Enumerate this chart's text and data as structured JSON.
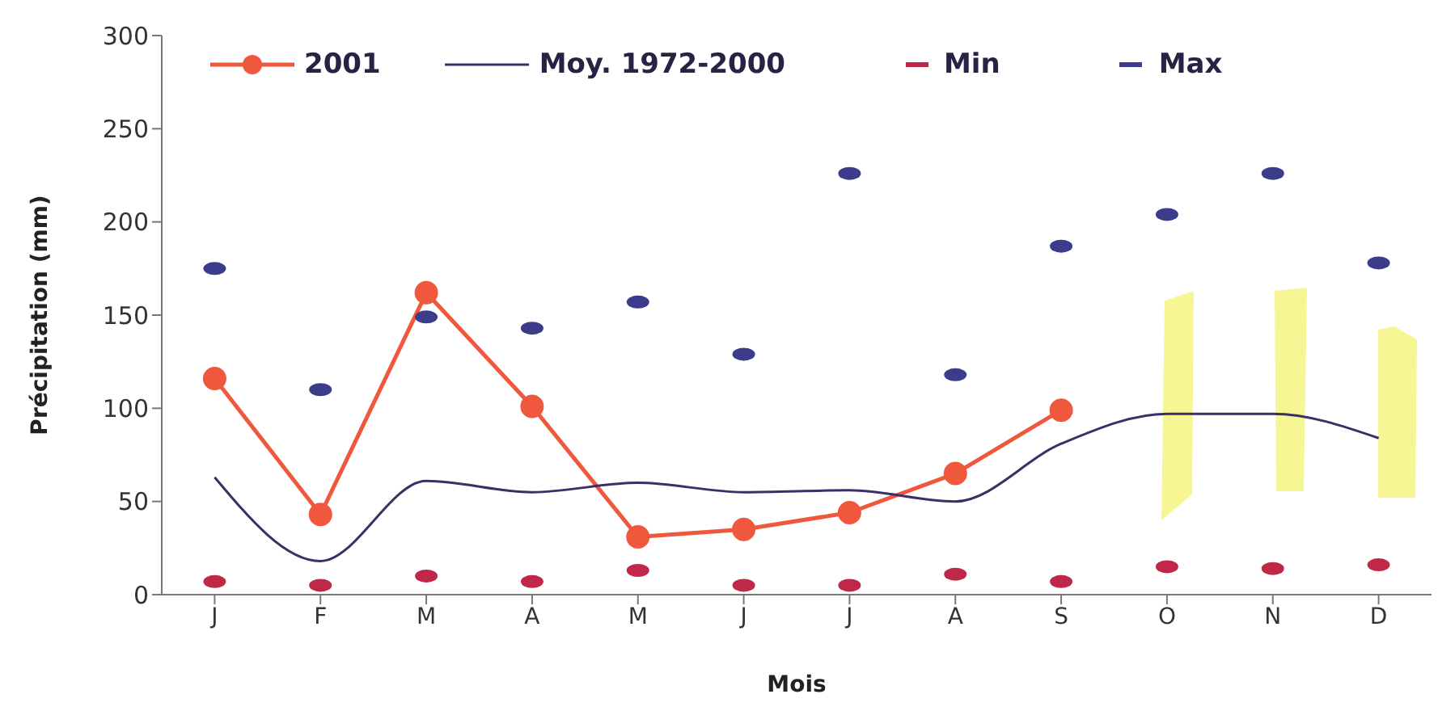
{
  "chart_data": {
    "type": "line",
    "xlabel": "Mois",
    "ylabel": "Précipitation (mm)",
    "categories": [
      "J",
      "F",
      "M",
      "A",
      "M",
      "J",
      "J",
      "A",
      "S",
      "O",
      "N",
      "D"
    ],
    "series": [
      {
        "name": "2001",
        "type": "line",
        "color": "#f0583e",
        "marker": "circle",
        "values": [
          116,
          43,
          162,
          101,
          31,
          35,
          44,
          65,
          99,
          null,
          null,
          null
        ]
      },
      {
        "name": "Moy. 1972-2000",
        "type": "line",
        "color": "#3b2f66",
        "marker": "none",
        "values": [
          63,
          18,
          61,
          55,
          60,
          55,
          56,
          50,
          81,
          97,
          97,
          84
        ]
      },
      {
        "name": "Min",
        "type": "scatter",
        "color": "#c0284a",
        "values": [
          7,
          5,
          10,
          7,
          13,
          5,
          5,
          11,
          7,
          15,
          14,
          16
        ]
      },
      {
        "name": "Max",
        "type": "scatter",
        "color": "#3c3c8c",
        "values": [
          175,
          110,
          149,
          143,
          157,
          129,
          226,
          118,
          187,
          204,
          226,
          178
        ]
      }
    ],
    "ylim": [
      0,
      300
    ],
    "yticks": [
      0,
      50,
      100,
      150,
      200,
      250,
      300
    ],
    "grid": false,
    "legend": "top"
  }
}
